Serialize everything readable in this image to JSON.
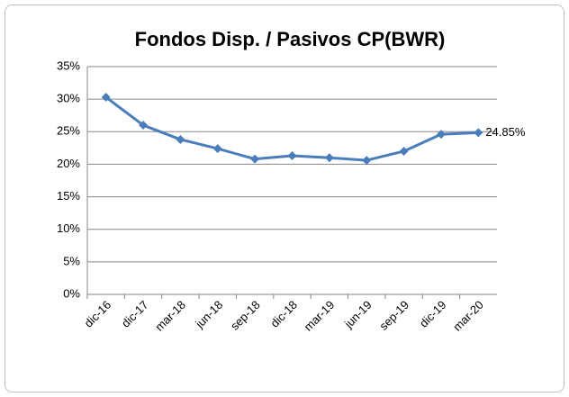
{
  "chart_data": {
    "type": "line",
    "title": "Fondos Disp. / Pasivos CP(BWR)",
    "categories": [
      "dic-16",
      "dic-17",
      "mar-18",
      "jun-18",
      "sep-18",
      "dic-18",
      "mar-19",
      "jun-19",
      "sep-19",
      "dic-19",
      "mar-20"
    ],
    "series": [
      {
        "name": "Fondos Disp. / Pasivos CP(BWR)",
        "color": "#4a7ebb",
        "values": [
          30.3,
          26.0,
          23.8,
          22.4,
          20.8,
          21.3,
          21.0,
          20.6,
          22.0,
          24.6,
          24.85
        ],
        "value_labels": [
          null,
          null,
          null,
          null,
          null,
          null,
          null,
          null,
          null,
          null,
          "24.85%"
        ]
      }
    ],
    "ylim": [
      0,
      35
    ],
    "yticks": [
      {
        "value": 0,
        "label": "0%"
      },
      {
        "value": 5,
        "label": "5%"
      },
      {
        "value": 10,
        "label": "10%"
      },
      {
        "value": 15,
        "label": "15%"
      },
      {
        "value": 20,
        "label": "20%"
      },
      {
        "value": 25,
        "label": "25%"
      },
      {
        "value": 30,
        "label": "30%"
      },
      {
        "value": 35,
        "label": "35%"
      }
    ],
    "grid": true
  }
}
